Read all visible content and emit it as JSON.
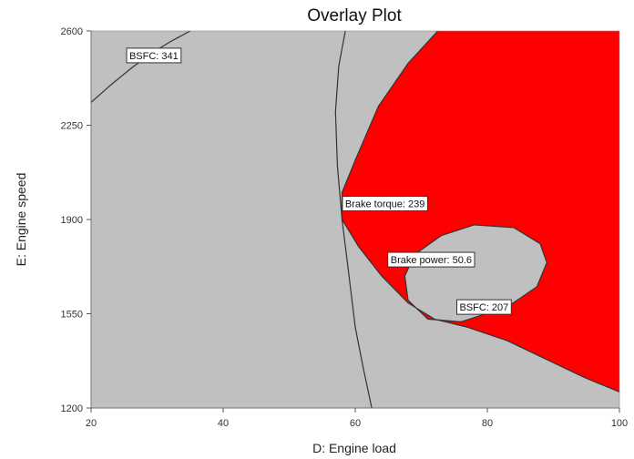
{
  "chart_data": {
    "type": "contour",
    "title": "Overlay Plot",
    "xlabel": "D: Engine load",
    "ylabel": "E: Engine speed",
    "xlim": [
      20,
      100
    ],
    "ylim": [
      1200,
      2600
    ],
    "x_ticks": [
      20,
      40,
      60,
      80,
      100
    ],
    "y_ticks": [
      1200,
      1550,
      1900,
      2250,
      2600
    ],
    "background_color": "#c0c0c0",
    "feasible_region_color": "#ff0000",
    "contours": [
      {
        "name": "BSFC",
        "value": 341,
        "label": "BSFC: 341",
        "points": [
          [
            20,
            2335
          ],
          [
            23,
            2400
          ],
          [
            26,
            2460
          ],
          [
            29,
            2515
          ],
          [
            32,
            2560
          ],
          [
            35,
            2600
          ]
        ]
      },
      {
        "name": "Brake torque",
        "value": 239,
        "label": "Brake torque: 239",
        "points": [
          [
            58.5,
            2600
          ],
          [
            57.5,
            2470
          ],
          [
            57,
            2300
          ],
          [
            57.3,
            2100
          ],
          [
            58,
            1900
          ],
          [
            59,
            1700
          ],
          [
            60,
            1500
          ],
          [
            61.2,
            1350
          ],
          [
            62.5,
            1200
          ]
        ]
      },
      {
        "name": "Brake power",
        "value": 50.6,
        "label": "Brake power: 50.6",
        "points": [
          [
            72.5,
            2600
          ],
          [
            68,
            2480
          ],
          [
            63.5,
            2320
          ],
          [
            60,
            2120
          ],
          [
            58,
            2000
          ],
          [
            58,
            1900
          ],
          [
            60.5,
            1800
          ],
          [
            64,
            1690
          ],
          [
            68,
            1590
          ],
          [
            72,
            1530
          ],
          [
            77,
            1500
          ],
          [
            83,
            1450
          ],
          [
            89,
            1380
          ],
          [
            95,
            1310
          ],
          [
            100,
            1260
          ]
        ]
      },
      {
        "name": "BSFC",
        "value": 207,
        "label": "BSFC: 207",
        "points": [
          [
            69,
            1770
          ],
          [
            73,
            1840
          ],
          [
            78,
            1880
          ],
          [
            84,
            1870
          ],
          [
            88,
            1810
          ],
          [
            89,
            1740
          ],
          [
            87.5,
            1650
          ],
          [
            83,
            1575
          ],
          [
            76,
            1520
          ],
          [
            71,
            1530
          ],
          [
            68,
            1600
          ],
          [
            67.5,
            1690
          ],
          [
            69,
            1770
          ]
        ]
      }
    ]
  }
}
